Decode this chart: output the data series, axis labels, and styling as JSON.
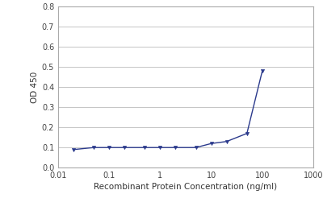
{
  "x": [
    0.02,
    0.05,
    0.1,
    0.2,
    0.5,
    1.0,
    2.0,
    5.0,
    10.0,
    20.0,
    50.0,
    100.0
  ],
  "y": [
    0.09,
    0.1,
    0.1,
    0.1,
    0.1,
    0.1,
    0.1,
    0.1,
    0.12,
    0.13,
    0.17,
    0.48
  ],
  "line_color": "#2b3a8c",
  "marker": "v",
  "marker_color": "#2b3a8c",
  "marker_size": 3,
  "xlabel": "Recombinant Protein Concentration (ng/ml)",
  "ylabel": "OD 450",
  "xlim_log": [
    0.01,
    1000
  ],
  "ylim": [
    0.0,
    0.8
  ],
  "yticks": [
    0.0,
    0.1,
    0.2,
    0.3,
    0.4,
    0.5,
    0.6,
    0.7,
    0.8
  ],
  "ytick_labels": [
    "0.0",
    "0.1",
    "0.2",
    "0.3",
    "0.4",
    "0.5",
    "0.6",
    "0.7",
    "0.8"
  ],
  "xtick_labels": [
    "0.01",
    "0.1",
    "1",
    "10",
    "100",
    "1000"
  ],
  "xtick_vals": [
    0.01,
    0.1,
    1,
    10,
    100,
    1000
  ],
  "background_color": "#ffffff",
  "grid_color": "#bbbbbb",
  "axis_label_fontsize": 7.5,
  "tick_fontsize": 7,
  "line_width": 1.0
}
